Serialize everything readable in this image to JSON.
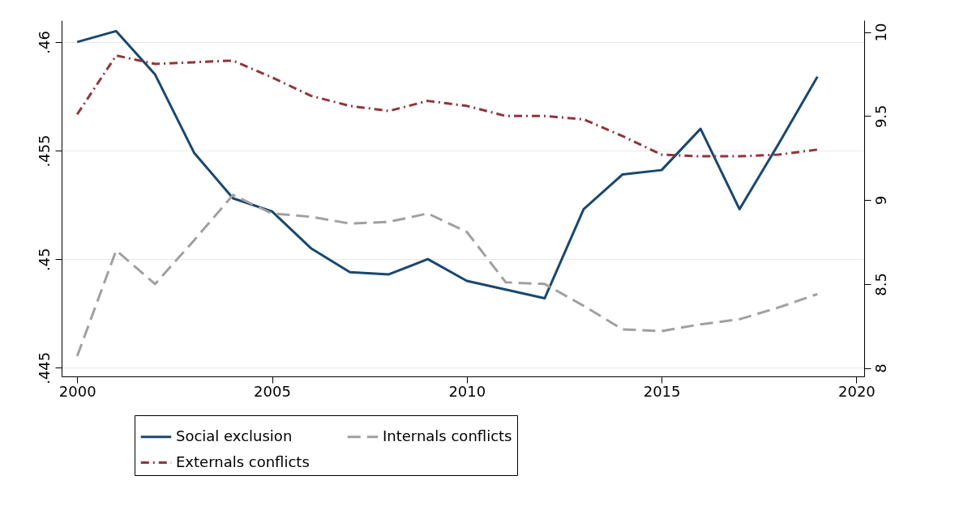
{
  "chart_data": {
    "type": "line",
    "x": [
      2000,
      2001,
      2002,
      2003,
      2004,
      2005,
      2006,
      2007,
      2008,
      2009,
      2010,
      2011,
      2012,
      2013,
      2014,
      2015,
      2016,
      2017,
      2018,
      2019
    ],
    "series": [
      {
        "name": "Social exclusion",
        "color": "#1a476f",
        "line_style": "solid",
        "values": [
          0.46,
          0.4605,
          0.4585,
          0.4549,
          0.4528,
          0.4522,
          0.4505,
          0.4494,
          0.4493,
          0.45,
          0.449,
          0.4486,
          0.4482,
          0.4523,
          0.4539,
          0.4541,
          0.456,
          0.4523,
          0.4553,
          0.4584
        ]
      },
      {
        "name": "Externals conflicts",
        "color": "#90353b",
        "line_style": "dashdot",
        "axis": "y2",
        "values": [
          9.51,
          9.86,
          9.81,
          9.82,
          9.83,
          9.73,
          9.62,
          9.56,
          9.53,
          9.59,
          9.56,
          9.5,
          9.5,
          9.48,
          9.38,
          9.27,
          9.26,
          9.26,
          9.27,
          9.3
        ]
      },
      {
        "name": "Internals conflicts",
        "color": "#a0a0a0",
        "line_style": "dashed",
        "axis": "y2",
        "values": [
          8.07,
          8.7,
          8.5,
          8.76,
          9.03,
          8.92,
          8.9,
          8.86,
          8.87,
          8.92,
          8.81,
          8.51,
          8.5,
          8.37,
          8.23,
          8.22,
          8.26,
          8.29,
          8.36,
          8.44
        ]
      }
    ],
    "xlim": [
      1999.6,
      2020.2
    ],
    "xticks": [
      2000,
      2005,
      2010,
      2015,
      2020
    ],
    "ylim": [
      0.4446,
      0.461
    ],
    "yticks": [
      {
        "value": 0.445,
        "label": ".445"
      },
      {
        "value": 0.45,
        "label": ".45"
      },
      {
        "value": 0.455,
        "label": ".455"
      },
      {
        "value": 0.46,
        "label": ".46"
      }
    ],
    "y2lim": [
      7.95,
      10.07
    ],
    "y2ticks": [
      8,
      {
        "value": 8.5,
        "label": "8.5"
      },
      9,
      {
        "value": 9.5,
        "label": "9.5"
      },
      10
    ],
    "grid": "y",
    "legend": "bottom",
    "marker": "none"
  }
}
